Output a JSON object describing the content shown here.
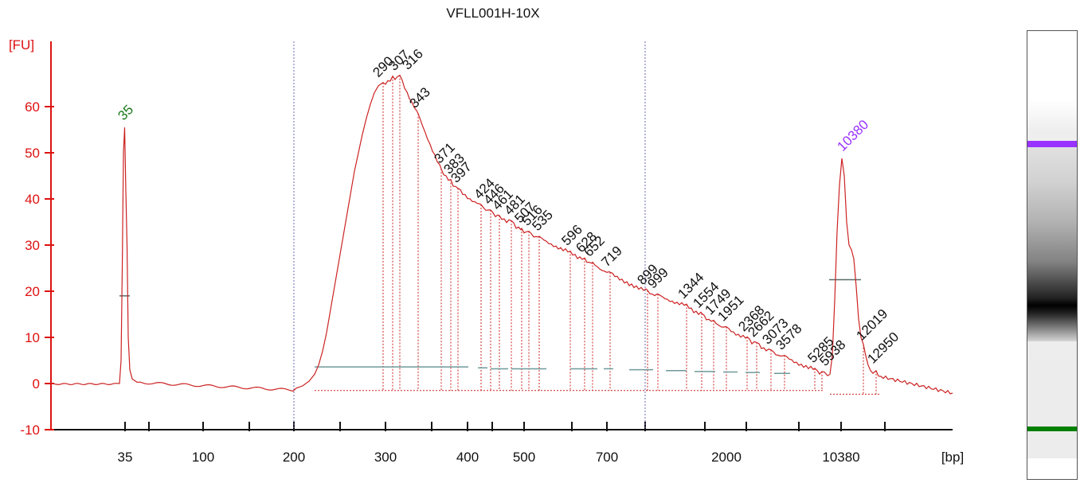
{
  "chart_data": {
    "type": "line",
    "title": "VFLL001H-10X",
    "ylabel": "[FU]",
    "xlabel": "[bp]",
    "ylim": [
      -10,
      70
    ],
    "y_ticks": [
      -10,
      0,
      10,
      20,
      30,
      40,
      50,
      60
    ],
    "x_tick_labels": [
      "35",
      "100",
      "200",
      "300",
      "400",
      "500",
      "700",
      "2000",
      "10380"
    ],
    "marker_lower": {
      "label": "35",
      "peak_fu": 55.5,
      "color": "#1a7a1a"
    },
    "marker_upper": {
      "label": "10380",
      "peak_fu": 48.8,
      "color": "#9933ff"
    },
    "smear_peak_labels": [
      "290",
      "307",
      "316",
      "343",
      "371",
      "383",
      "397",
      "424",
      "446",
      "461",
      "481",
      "507",
      "516",
      "535",
      "596",
      "628",
      "652",
      "719",
      "899",
      "999",
      "1344",
      "1554",
      "1749",
      "1951",
      "2368",
      "2662",
      "3073",
      "3578",
      "5285",
      "5938"
    ],
    "smear_peak_fu": [
      65.2,
      66.6,
      66.8,
      58.5,
      46.5,
      44.2,
      42.3,
      38.8,
      37.6,
      36.4,
      35.3,
      33.6,
      33.0,
      31.9,
      28.7,
      27.2,
      26.3,
      24.1,
      20.2,
      19.4,
      17.2,
      15.2,
      13.7,
      12.3,
      10.1,
      8.9,
      7.3,
      6.1,
      3.3,
      2.6
    ],
    "post_marker_peak_labels": [
      "12019",
      "12950"
    ],
    "post_marker_peak_fu": [
      8.5,
      2.8
    ],
    "grid": false,
    "line_color": "#cc2222"
  },
  "gel": {
    "lane_color": "#000000",
    "lower_marker_color": "#008000",
    "upper_marker_color": "#9933ff"
  }
}
